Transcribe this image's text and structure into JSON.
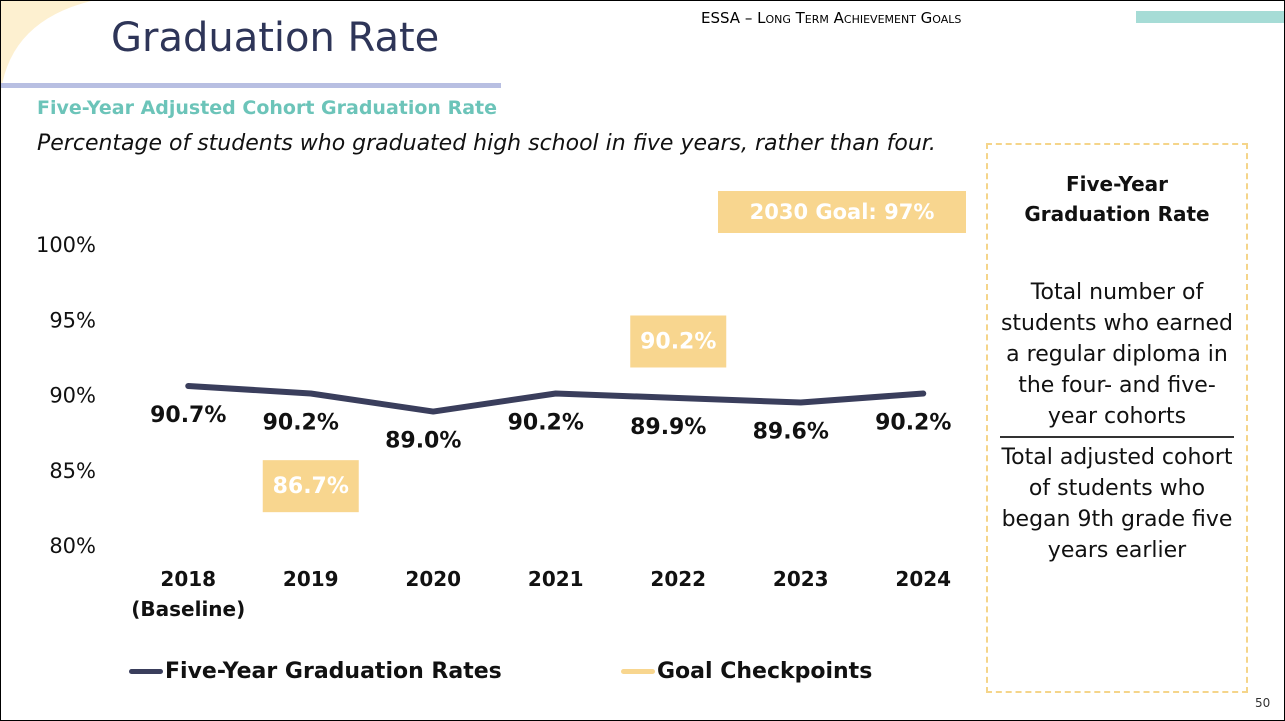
{
  "header": {
    "title": "Graduation Rate",
    "section": "ESSA – Long Term Achievement Goals"
  },
  "chart_data": {
    "type": "line",
    "title": "Five-Year Adjusted Cohort Graduation Rate",
    "subtitle": "Percentage of students who graduated high school in five years, rather than four.",
    "annotation": "2030 Goal: 97%",
    "categories": [
      "2018 (Baseline)",
      "2019",
      "2020",
      "2021",
      "2022",
      "2023",
      "2024"
    ],
    "series": [
      {
        "name": "Five-Year Graduation Rates",
        "color": "#3a3e5c",
        "values": [
          90.7,
          90.2,
          89.0,
          90.2,
          89.9,
          89.6,
          90.2
        ],
        "value_labels": [
          "90.7%",
          "90.2%",
          "89.0%",
          "90.2%",
          "89.9%",
          "89.6%",
          "90.2%"
        ]
      },
      {
        "name": "Goal Checkpoints",
        "color": "#f8d68f",
        "values": [
          null,
          86.7,
          null,
          null,
          90.2,
          null,
          null
        ],
        "value_labels": [
          null,
          "86.7%",
          null,
          null,
          "90.2%",
          null,
          null
        ]
      }
    ],
    "ylim": [
      80,
      100
    ],
    "yticks": [
      {
        "value": 80,
        "label": "80%"
      },
      {
        "value": 85,
        "label": "85%"
      },
      {
        "value": 90,
        "label": "90%"
      },
      {
        "value": 95,
        "label": "95%"
      },
      {
        "value": 100,
        "label": "100%"
      }
    ],
    "grid": false,
    "legend": "bottom"
  },
  "sidebar": {
    "title": "Five-Year Graduation Rate",
    "numerator": "Total number of students who earned a regular diploma in the four- and five-year cohorts",
    "denominator": "Total adjusted cohort of students who began 9th grade five years earlier"
  },
  "page_number": "50"
}
